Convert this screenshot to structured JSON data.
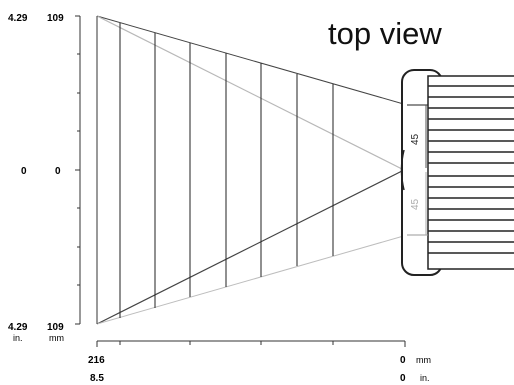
{
  "title": "top view",
  "left_scale": {
    "top": {
      "in": "4.29",
      "mm": "109"
    },
    "middle": {
      "in": "0",
      "mm": "0"
    },
    "bottom": {
      "in": "4.29",
      "mm": "109"
    },
    "unit_in": "in.",
    "unit_mm": "mm"
  },
  "bottom_scale": {
    "left": {
      "mm": "216",
      "in": "8.5"
    },
    "right": {
      "mm": "0",
      "in": "0"
    },
    "unit_mm": "mm",
    "unit_in": "in."
  },
  "angles": {
    "upper": "45",
    "lower": "45"
  },
  "colors": {
    "line": "#3a3a3a",
    "light_line": "#b5b5b5",
    "device": "#2a2a2a",
    "device_light": "#9a9a9a"
  }
}
